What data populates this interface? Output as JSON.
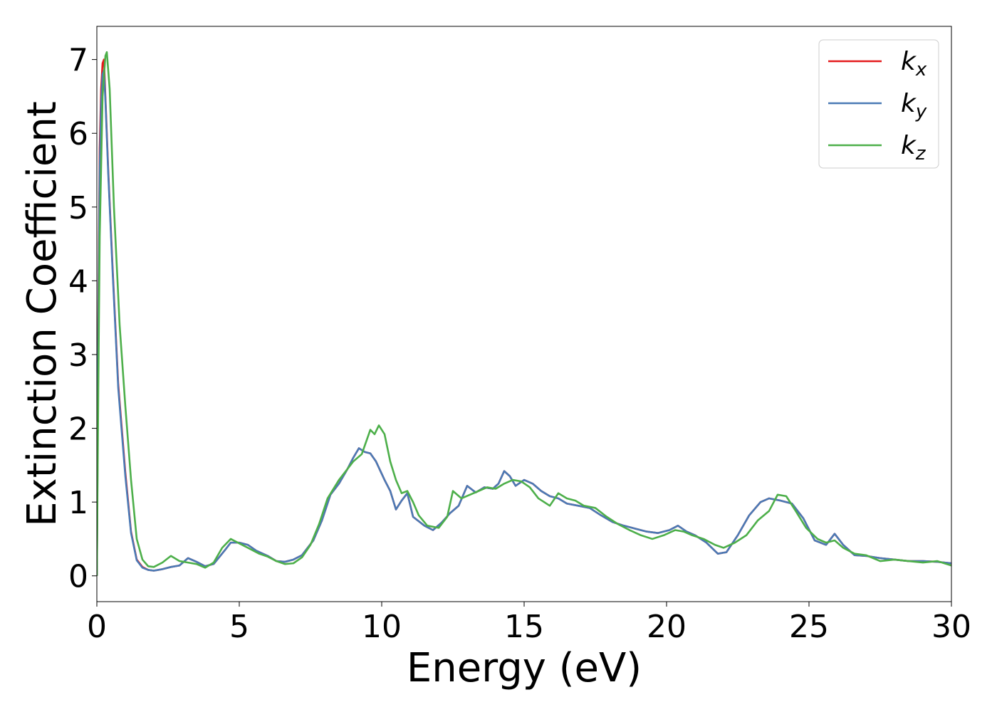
{
  "chart_data": {
    "type": "line",
    "xlabel": "Energy (eV)",
    "ylabel": "Extinction Coefficient",
    "xlim": [
      0,
      30
    ],
    "ylim": [
      -0.35,
      7.45
    ],
    "xticks": [
      0,
      5,
      10,
      15,
      20,
      25,
      30
    ],
    "yticks": [
      0,
      1,
      2,
      3,
      4,
      5,
      6,
      7
    ],
    "legend_position": "top-right",
    "grid": false,
    "series": [
      {
        "name": "k_x",
        "label_base": "k",
        "label_sub": "x",
        "color": "#e41a1c",
        "points": [
          [
            0,
            0
          ],
          [
            0.05,
            3.5
          ],
          [
            0.1,
            5.8
          ],
          [
            0.15,
            6.6
          ],
          [
            0.2,
            6.95
          ],
          [
            0.25,
            7.0
          ],
          [
            0.3,
            6.5
          ],
          [
            0.4,
            5.5
          ],
          [
            0.55,
            4.2
          ],
          [
            0.75,
            2.6
          ],
          [
            1.0,
            1.4
          ],
          [
            1.2,
            0.6
          ],
          [
            1.4,
            0.22
          ],
          [
            1.6,
            0.12
          ],
          [
            1.8,
            0.08
          ],
          [
            2.0,
            0.07
          ],
          [
            2.3,
            0.09
          ],
          [
            2.6,
            0.12
          ],
          [
            2.9,
            0.14
          ],
          [
            3.2,
            0.24
          ],
          [
            3.5,
            0.19
          ],
          [
            3.8,
            0.13
          ],
          [
            4.1,
            0.16
          ],
          [
            4.5,
            0.35
          ],
          [
            4.7,
            0.45
          ],
          [
            5.0,
            0.45
          ],
          [
            5.3,
            0.42
          ],
          [
            5.6,
            0.34
          ],
          [
            6.0,
            0.27
          ],
          [
            6.3,
            0.2
          ],
          [
            6.6,
            0.19
          ],
          [
            6.9,
            0.22
          ],
          [
            7.2,
            0.28
          ],
          [
            7.6,
            0.48
          ],
          [
            7.9,
            0.75
          ],
          [
            8.2,
            1.1
          ],
          [
            8.5,
            1.25
          ],
          [
            8.8,
            1.45
          ],
          [
            9.0,
            1.6
          ],
          [
            9.2,
            1.73
          ],
          [
            9.4,
            1.68
          ],
          [
            9.6,
            1.66
          ],
          [
            9.8,
            1.55
          ],
          [
            10.1,
            1.3
          ],
          [
            10.3,
            1.15
          ],
          [
            10.5,
            0.9
          ],
          [
            10.7,
            1.02
          ],
          [
            10.9,
            1.12
          ],
          [
            11.1,
            0.8
          ],
          [
            11.5,
            0.68
          ],
          [
            11.8,
            0.62
          ],
          [
            12.1,
            0.72
          ],
          [
            12.4,
            0.85
          ],
          [
            12.7,
            0.95
          ],
          [
            13.0,
            1.22
          ],
          [
            13.3,
            1.13
          ],
          [
            13.6,
            1.2
          ],
          [
            13.9,
            1.18
          ],
          [
            14.1,
            1.25
          ],
          [
            14.3,
            1.42
          ],
          [
            14.5,
            1.35
          ],
          [
            14.7,
            1.22
          ],
          [
            15.0,
            1.3
          ],
          [
            15.3,
            1.25
          ],
          [
            15.6,
            1.15
          ],
          [
            15.9,
            1.08
          ],
          [
            16.2,
            1.05
          ],
          [
            16.5,
            0.98
          ],
          [
            16.9,
            0.95
          ],
          [
            17.3,
            0.92
          ],
          [
            17.7,
            0.82
          ],
          [
            18.1,
            0.73
          ],
          [
            18.5,
            0.68
          ],
          [
            18.9,
            0.64
          ],
          [
            19.3,
            0.6
          ],
          [
            19.7,
            0.58
          ],
          [
            20.1,
            0.62
          ],
          [
            20.4,
            0.68
          ],
          [
            20.7,
            0.6
          ],
          [
            21.0,
            0.55
          ],
          [
            21.4,
            0.45
          ],
          [
            21.8,
            0.3
          ],
          [
            22.1,
            0.32
          ],
          [
            22.5,
            0.55
          ],
          [
            22.9,
            0.82
          ],
          [
            23.3,
            1.0
          ],
          [
            23.6,
            1.05
          ],
          [
            24.0,
            1.02
          ],
          [
            24.4,
            0.98
          ],
          [
            24.8,
            0.78
          ],
          [
            25.2,
            0.48
          ],
          [
            25.6,
            0.42
          ],
          [
            25.9,
            0.57
          ],
          [
            26.2,
            0.42
          ],
          [
            26.6,
            0.28
          ],
          [
            27.0,
            0.27
          ],
          [
            27.5,
            0.24
          ],
          [
            28.0,
            0.22
          ],
          [
            28.5,
            0.2
          ],
          [
            29.0,
            0.2
          ],
          [
            29.5,
            0.19
          ],
          [
            30.0,
            0.17
          ]
        ]
      },
      {
        "name": "k_y",
        "label_base": "k",
        "label_sub": "y",
        "color": "#4a7ab5",
        "points": [
          [
            0,
            0
          ],
          [
            0.05,
            3.2
          ],
          [
            0.1,
            5.5
          ],
          [
            0.15,
            6.4
          ],
          [
            0.2,
            6.8
          ],
          [
            0.25,
            6.85
          ],
          [
            0.3,
            6.45
          ],
          [
            0.4,
            5.45
          ],
          [
            0.55,
            4.15
          ],
          [
            0.75,
            2.55
          ],
          [
            1.0,
            1.35
          ],
          [
            1.2,
            0.58
          ],
          [
            1.4,
            0.21
          ],
          [
            1.6,
            0.11
          ],
          [
            1.8,
            0.08
          ],
          [
            2.0,
            0.07
          ],
          [
            2.3,
            0.09
          ],
          [
            2.6,
            0.12
          ],
          [
            2.9,
            0.14
          ],
          [
            3.2,
            0.24
          ],
          [
            3.5,
            0.19
          ],
          [
            3.8,
            0.13
          ],
          [
            4.1,
            0.16
          ],
          [
            4.5,
            0.35
          ],
          [
            4.7,
            0.45
          ],
          [
            5.0,
            0.45
          ],
          [
            5.3,
            0.42
          ],
          [
            5.6,
            0.34
          ],
          [
            6.0,
            0.27
          ],
          [
            6.3,
            0.2
          ],
          [
            6.6,
            0.19
          ],
          [
            6.9,
            0.22
          ],
          [
            7.2,
            0.28
          ],
          [
            7.6,
            0.48
          ],
          [
            7.9,
            0.75
          ],
          [
            8.2,
            1.1
          ],
          [
            8.5,
            1.25
          ],
          [
            8.8,
            1.45
          ],
          [
            9.0,
            1.6
          ],
          [
            9.2,
            1.73
          ],
          [
            9.4,
            1.68
          ],
          [
            9.6,
            1.66
          ],
          [
            9.8,
            1.55
          ],
          [
            10.1,
            1.3
          ],
          [
            10.3,
            1.15
          ],
          [
            10.5,
            0.9
          ],
          [
            10.7,
            1.02
          ],
          [
            10.9,
            1.12
          ],
          [
            11.1,
            0.8
          ],
          [
            11.5,
            0.68
          ],
          [
            11.8,
            0.62
          ],
          [
            12.1,
            0.72
          ],
          [
            12.4,
            0.85
          ],
          [
            12.7,
            0.95
          ],
          [
            13.0,
            1.22
          ],
          [
            13.3,
            1.13
          ],
          [
            13.6,
            1.2
          ],
          [
            13.9,
            1.18
          ],
          [
            14.1,
            1.25
          ],
          [
            14.3,
            1.42
          ],
          [
            14.5,
            1.35
          ],
          [
            14.7,
            1.22
          ],
          [
            15.0,
            1.3
          ],
          [
            15.3,
            1.25
          ],
          [
            15.6,
            1.15
          ],
          [
            15.9,
            1.08
          ],
          [
            16.2,
            1.05
          ],
          [
            16.5,
            0.98
          ],
          [
            16.9,
            0.95
          ],
          [
            17.3,
            0.92
          ],
          [
            17.7,
            0.82
          ],
          [
            18.1,
            0.73
          ],
          [
            18.5,
            0.68
          ],
          [
            18.9,
            0.64
          ],
          [
            19.3,
            0.6
          ],
          [
            19.7,
            0.58
          ],
          [
            20.1,
            0.62
          ],
          [
            20.4,
            0.68
          ],
          [
            20.7,
            0.6
          ],
          [
            21.0,
            0.55
          ],
          [
            21.4,
            0.45
          ],
          [
            21.8,
            0.3
          ],
          [
            22.1,
            0.32
          ],
          [
            22.5,
            0.55
          ],
          [
            22.9,
            0.82
          ],
          [
            23.3,
            1.0
          ],
          [
            23.6,
            1.05
          ],
          [
            24.0,
            1.02
          ],
          [
            24.4,
            0.98
          ],
          [
            24.8,
            0.78
          ],
          [
            25.2,
            0.48
          ],
          [
            25.6,
            0.42
          ],
          [
            25.9,
            0.57
          ],
          [
            26.2,
            0.42
          ],
          [
            26.6,
            0.28
          ],
          [
            27.0,
            0.27
          ],
          [
            27.5,
            0.24
          ],
          [
            28.0,
            0.22
          ],
          [
            28.5,
            0.2
          ],
          [
            29.0,
            0.2
          ],
          [
            29.5,
            0.19
          ],
          [
            30.0,
            0.17
          ]
        ]
      },
      {
        "name": "k_z",
        "label_base": "k",
        "label_sub": "z",
        "color": "#4daf4a",
        "points": [
          [
            0,
            0
          ],
          [
            0.05,
            2.5
          ],
          [
            0.1,
            4.6
          ],
          [
            0.2,
            6.5
          ],
          [
            0.3,
            7.05
          ],
          [
            0.35,
            7.1
          ],
          [
            0.45,
            6.6
          ],
          [
            0.6,
            5.0
          ],
          [
            0.8,
            3.4
          ],
          [
            1.0,
            2.3
          ],
          [
            1.2,
            1.3
          ],
          [
            1.4,
            0.5
          ],
          [
            1.6,
            0.22
          ],
          [
            1.8,
            0.13
          ],
          [
            2.0,
            0.12
          ],
          [
            2.3,
            0.18
          ],
          [
            2.6,
            0.27
          ],
          [
            2.9,
            0.2
          ],
          [
            3.2,
            0.18
          ],
          [
            3.5,
            0.16
          ],
          [
            3.8,
            0.11
          ],
          [
            4.1,
            0.18
          ],
          [
            4.4,
            0.38
          ],
          [
            4.7,
            0.5
          ],
          [
            5.0,
            0.44
          ],
          [
            5.3,
            0.38
          ],
          [
            5.7,
            0.3
          ],
          [
            6.0,
            0.26
          ],
          [
            6.3,
            0.2
          ],
          [
            6.6,
            0.16
          ],
          [
            6.9,
            0.17
          ],
          [
            7.2,
            0.25
          ],
          [
            7.5,
            0.42
          ],
          [
            7.8,
            0.7
          ],
          [
            8.1,
            1.05
          ],
          [
            8.5,
            1.3
          ],
          [
            8.8,
            1.45
          ],
          [
            9.0,
            1.55
          ],
          [
            9.3,
            1.65
          ],
          [
            9.6,
            1.98
          ],
          [
            9.75,
            1.92
          ],
          [
            9.9,
            2.04
          ],
          [
            10.1,
            1.92
          ],
          [
            10.3,
            1.55
          ],
          [
            10.5,
            1.3
          ],
          [
            10.7,
            1.12
          ],
          [
            10.9,
            1.15
          ],
          [
            11.1,
            1.0
          ],
          [
            11.3,
            0.82
          ],
          [
            11.6,
            0.68
          ],
          [
            12.0,
            0.65
          ],
          [
            12.3,
            0.8
          ],
          [
            12.5,
            1.15
          ],
          [
            12.8,
            1.05
          ],
          [
            13.1,
            1.1
          ],
          [
            13.4,
            1.15
          ],
          [
            13.7,
            1.2
          ],
          [
            14.0,
            1.18
          ],
          [
            14.3,
            1.25
          ],
          [
            14.6,
            1.3
          ],
          [
            14.9,
            1.28
          ],
          [
            15.2,
            1.2
          ],
          [
            15.5,
            1.05
          ],
          [
            15.9,
            0.95
          ],
          [
            16.2,
            1.12
          ],
          [
            16.5,
            1.05
          ],
          [
            16.8,
            1.02
          ],
          [
            17.1,
            0.95
          ],
          [
            17.5,
            0.92
          ],
          [
            17.9,
            0.8
          ],
          [
            18.3,
            0.7
          ],
          [
            18.7,
            0.62
          ],
          [
            19.1,
            0.55
          ],
          [
            19.5,
            0.5
          ],
          [
            19.9,
            0.55
          ],
          [
            20.3,
            0.62
          ],
          [
            20.6,
            0.6
          ],
          [
            20.9,
            0.55
          ],
          [
            21.3,
            0.5
          ],
          [
            21.7,
            0.42
          ],
          [
            22.0,
            0.38
          ],
          [
            22.4,
            0.45
          ],
          [
            22.8,
            0.55
          ],
          [
            23.2,
            0.75
          ],
          [
            23.6,
            0.88
          ],
          [
            23.9,
            1.1
          ],
          [
            24.2,
            1.08
          ],
          [
            24.5,
            0.9
          ],
          [
            24.9,
            0.65
          ],
          [
            25.3,
            0.5
          ],
          [
            25.6,
            0.45
          ],
          [
            25.9,
            0.48
          ],
          [
            26.2,
            0.38
          ],
          [
            26.6,
            0.3
          ],
          [
            27.0,
            0.28
          ],
          [
            27.5,
            0.2
          ],
          [
            28.0,
            0.22
          ],
          [
            28.5,
            0.2
          ],
          [
            29.0,
            0.18
          ],
          [
            29.5,
            0.2
          ],
          [
            30.0,
            0.14
          ]
        ]
      }
    ]
  }
}
